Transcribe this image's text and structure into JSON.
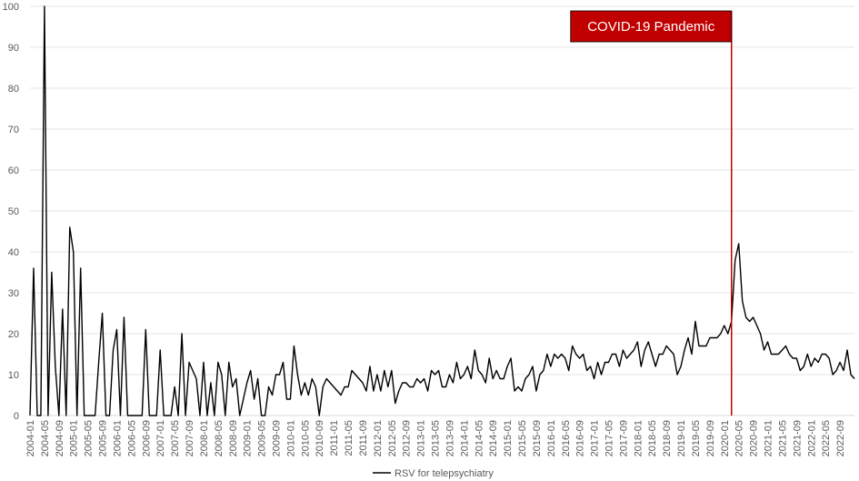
{
  "chart_data": {
    "type": "line",
    "title": "",
    "xlabel": "",
    "ylabel": "",
    "ylim": [
      0,
      100
    ],
    "yticks": [
      0,
      10,
      20,
      30,
      40,
      50,
      60,
      70,
      80,
      90,
      100
    ],
    "x_start": "2004-01",
    "x_tick_labels": [
      "2004-01",
      "2004-05",
      "2004-09",
      "2005-01",
      "2005-05",
      "2005-09",
      "2006-01",
      "2006-05",
      "2006-09",
      "2007-01",
      "2007-05",
      "2007-09",
      "2008-01",
      "2008-05",
      "2008-09",
      "2009-01",
      "2009-05",
      "2009-09",
      "2010-01",
      "2010-05",
      "2010-09",
      "2011-01",
      "2011-05",
      "2011-09",
      "2012-01",
      "2012-05",
      "2012-09",
      "2013-01",
      "2013-05",
      "2013-09",
      "2014-01",
      "2014-05",
      "2014-09",
      "2015-01",
      "2015-05",
      "2015-09",
      "2016-01",
      "2016-05",
      "2016-09",
      "2017-01",
      "2017-05",
      "2017-09",
      "2018-01",
      "2018-05",
      "2018-09",
      "2019-01",
      "2019-05",
      "2019-09",
      "2020-01",
      "2020-05",
      "2020-09",
      "2021-01",
      "2021-05",
      "2021-09",
      "2022-01",
      "2022-05",
      "2022-09"
    ],
    "series": [
      {
        "name": "RSV for telepsychiatry",
        "color": "#000000",
        "values": [
          0,
          36,
          0,
          0,
          100,
          0,
          35,
          12,
          0,
          26,
          0,
          46,
          40,
          0,
          36,
          0,
          0,
          0,
          0,
          13,
          25,
          0,
          0,
          16,
          21,
          0,
          24,
          0,
          0,
          0,
          0,
          0,
          21,
          0,
          0,
          0,
          16,
          0,
          0,
          0,
          7,
          0,
          20,
          0,
          13,
          11,
          9,
          0,
          13,
          0,
          8,
          0,
          13,
          10,
          0,
          13,
          7,
          9,
          0,
          4,
          8,
          11,
          4,
          9,
          0,
          0,
          7,
          5,
          10,
          10,
          13,
          4,
          4,
          17,
          10,
          5,
          8,
          5,
          9,
          7,
          0,
          7,
          9,
          8,
          7,
          6,
          5,
          7,
          7,
          11,
          10,
          9,
          8,
          6,
          12,
          6,
          10,
          6,
          11,
          7,
          11,
          3,
          6,
          8,
          8,
          7,
          7,
          9,
          8,
          9,
          6,
          11,
          10,
          11,
          7,
          7,
          10,
          8,
          13,
          9,
          10,
          12,
          9,
          16,
          11,
          10,
          8,
          14,
          9,
          11,
          9,
          9,
          12,
          14,
          6,
          7,
          6,
          9,
          10,
          12,
          6,
          10,
          11,
          15,
          12,
          15,
          14,
          15,
          14,
          11,
          17,
          15,
          14,
          15,
          11,
          12,
          9,
          13,
          10,
          13,
          13,
          15,
          15,
          12,
          16,
          14,
          15,
          16,
          18,
          12,
          16,
          18,
          15,
          12,
          15,
          15,
          17,
          16,
          15,
          10,
          12,
          16,
          19,
          15,
          23,
          17,
          17,
          17,
          19,
          19,
          19,
          20,
          22,
          20,
          23,
          38,
          42,
          28,
          24,
          23,
          24,
          22,
          20,
          16,
          18,
          15,
          15,
          15,
          16,
          17,
          15,
          14,
          14,
          11,
          12,
          15,
          12,
          14,
          13,
          15,
          15,
          14,
          10,
          11,
          13,
          11,
          16,
          10,
          9
        ]
      }
    ],
    "annotations": [
      {
        "label": "COVID-19 Pandemic",
        "x": "2020-03",
        "color": "#c00000"
      }
    ],
    "legend": {
      "position": "bottom"
    },
    "grid": true
  }
}
